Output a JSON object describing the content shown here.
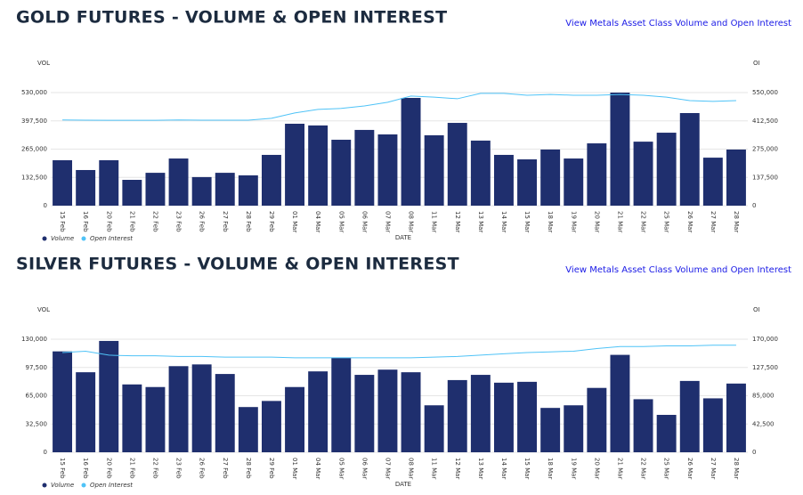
{
  "chart_data": [
    {
      "type": "bar",
      "title": "GOLD FUTURES - VOLUME & OPEN INTEREST",
      "link": "View Metals Asset Class Volume and Open Interest",
      "y_label": "VOL",
      "y2_label": "OI",
      "x_label": "DATE",
      "categories": [
        "15 Feb",
        "16 Feb",
        "20 Feb",
        "21 Feb",
        "22 Feb",
        "23 Feb",
        "26 Feb",
        "27 Feb",
        "28 Feb",
        "29 Feb",
        "01 Mar",
        "04 Mar",
        "05 Mar",
        "06 Mar",
        "07 Mar",
        "08 Mar",
        "11 Mar",
        "12 Mar",
        "13 Mar",
        "14 Mar",
        "15 Mar",
        "18 Mar",
        "19 Mar",
        "20 Mar",
        "21 Mar",
        "22 Mar",
        "25 Mar",
        "26 Mar",
        "27 Mar",
        "28 Mar"
      ],
      "series": [
        {
          "name": "Volume",
          "color": "#1f2f6e",
          "values": [
            213000,
            167000,
            213000,
            121000,
            154000,
            221000,
            134000,
            154000,
            142000,
            238000,
            384000,
            376000,
            309000,
            355000,
            334000,
            505000,
            330000,
            388000,
            305000,
            238000,
            217000,
            263000,
            221000,
            292000,
            530000,
            300000,
            342000,
            434000,
            225000,
            263000
          ]
        },
        {
          "name": "Open Interest",
          "color": "#4fc3f7",
          "axis": "y2",
          "type": "line",
          "values": [
            417000,
            416000,
            415000,
            415000,
            415000,
            417000,
            416000,
            416000,
            416000,
            425000,
            451000,
            468000,
            473000,
            485000,
            503000,
            533000,
            528000,
            520000,
            546000,
            546000,
            537000,
            541000,
            537000,
            537000,
            541000,
            537000,
            528000,
            511000,
            507000,
            511000
          ]
        }
      ],
      "ylim": [
        0,
        530000
      ],
      "yticks": [
        0,
        {
          "value": 132500,
          "label": "132,500"
        },
        {
          "value": 265000,
          "label": "265,000"
        },
        {
          "value": 397500,
          "label": "397,500"
        },
        {
          "value": 530000,
          "label": "530,000"
        }
      ],
      "y2lim": [
        0,
        550000
      ],
      "y2ticks": [
        0,
        {
          "value": 137500,
          "label": "137,500"
        },
        {
          "value": 275000,
          "label": "275,000"
        },
        {
          "value": 412500,
          "label": "412,500"
        },
        {
          "value": 550000,
          "label": "550,000"
        }
      ],
      "grid": true
    },
    {
      "type": "bar",
      "title": "SILVER FUTURES - VOLUME & OPEN INTEREST",
      "link": "View Metals Asset Class Volume and Open Interest",
      "y_label": "VOL",
      "y2_label": "OI",
      "x_label": "DATE",
      "categories": [
        "15 Feb",
        "16 Feb",
        "20 Feb",
        "21 Feb",
        "22 Feb",
        "23 Feb",
        "26 Feb",
        "27 Feb",
        "28 Feb",
        "29 Feb",
        "01 Mar",
        "04 Mar",
        "05 Mar",
        "06 Mar",
        "07 Mar",
        "08 Mar",
        "11 Mar",
        "12 Mar",
        "13 Mar",
        "14 Mar",
        "15 Mar",
        "18 Mar",
        "19 Mar",
        "20 Mar",
        "21 Mar",
        "22 Mar",
        "25 Mar",
        "26 Mar",
        "27 Mar",
        "28 Mar"
      ],
      "series": [
        {
          "name": "Volume",
          "color": "#1f2f6e",
          "values": [
            116000,
            92000,
            128000,
            78000,
            75000,
            99000,
            101000,
            90000,
            52000,
            59000,
            75000,
            93000,
            109000,
            89000,
            95000,
            92000,
            54000,
            83000,
            89000,
            80000,
            81000,
            51000,
            54000,
            74000,
            112000,
            61000,
            43000,
            82000,
            62000,
            79000
          ]
        },
        {
          "name": "Open Interest",
          "color": "#4fc3f7",
          "axis": "y2",
          "type": "line",
          "values": [
            150000,
            152000,
            146000,
            145000,
            145000,
            144000,
            144000,
            143000,
            143000,
            143000,
            142000,
            142000,
            142000,
            142000,
            142000,
            142000,
            143000,
            144000,
            146000,
            148000,
            150000,
            151000,
            152000,
            156000,
            159000,
            159000,
            160000,
            160000,
            161000,
            161000
          ]
        }
      ],
      "ylim": [
        0,
        130000
      ],
      "yticks": [
        0,
        {
          "value": 32500,
          "label": "32,500"
        },
        {
          "value": 65000,
          "label": "65,000"
        },
        {
          "value": 97500,
          "label": "97,500"
        },
        {
          "value": 130000,
          "label": "130,000"
        }
      ],
      "y2lim": [
        0,
        170000
      ],
      "y2ticks": [
        0,
        {
          "value": 42500,
          "label": "42,500"
        },
        {
          "value": 85000,
          "label": "85,000"
        },
        {
          "value": 127500,
          "label": "127,500"
        },
        {
          "value": 170000,
          "label": "170,000"
        }
      ],
      "grid": true
    }
  ]
}
